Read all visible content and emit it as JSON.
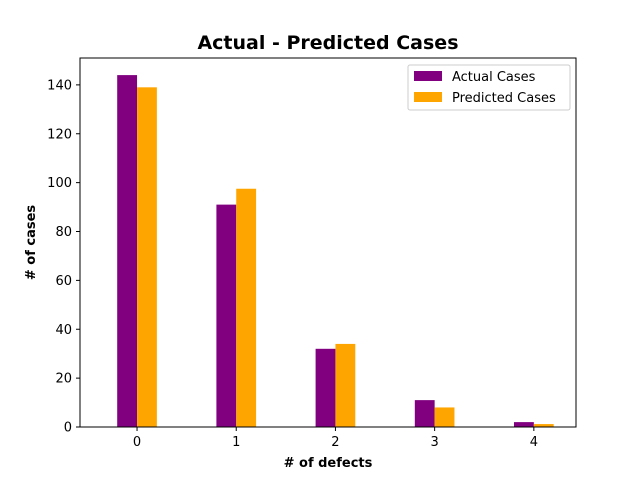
{
  "chart_data": {
    "type": "bar",
    "title": "Actual - Predicted Cases",
    "xlabel": "# of defects",
    "ylabel": "# of cases",
    "categories": [
      "0",
      "1",
      "2",
      "3",
      "4"
    ],
    "series": [
      {
        "name": "Actual Cases",
        "color": "#800080",
        "values": [
          144,
          91,
          32,
          11,
          2
        ]
      },
      {
        "name": "Predicted Cases",
        "color": "#ffa500",
        "values": [
          139,
          97.5,
          34,
          8,
          1.2
        ]
      }
    ],
    "ylim": [
      0,
      151
    ],
    "yticks": [
      0,
      20,
      40,
      60,
      80,
      100,
      120,
      140
    ],
    "grid": false,
    "legend_position": "top-right"
  }
}
